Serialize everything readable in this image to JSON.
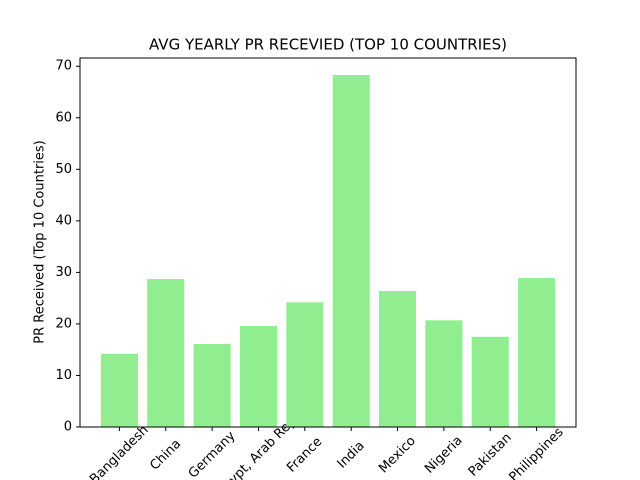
{
  "chart_data": {
    "type": "bar",
    "title": "AVG YEARLY PR RECEVIED (TOP 10 COUNTRIES)",
    "y_label": "PR Received (Top 10 Countries)",
    "categories": [
      "Bangladesh",
      "China",
      "Germany",
      "Egypt, Arab Rep.",
      "France",
      "India",
      "Mexico",
      "Nigeria",
      "Pakistan",
      "Philippines"
    ],
    "values": [
      14.2,
      28.7,
      16.1,
      19.6,
      24.2,
      68.3,
      26.4,
      20.7,
      17.5,
      28.9
    ],
    "color": "#90ee90",
    "ylim": [
      0,
      71.6
    ],
    "yticks": [
      0,
      10,
      20,
      30,
      40,
      50,
      60,
      70
    ],
    "grid": false
  }
}
